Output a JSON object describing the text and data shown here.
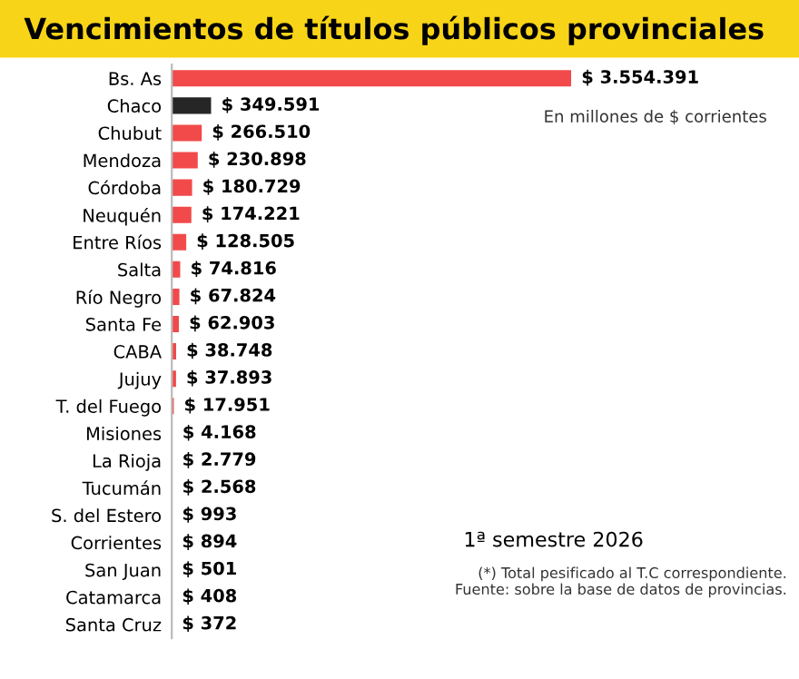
{
  "chart_data": {
    "type": "bar",
    "orientation": "horizontal",
    "title": "Vencimientos de títulos públicos provinciales",
    "subtitle": "En millones de $ corrientes",
    "categories": [
      "Bs. As",
      "Chaco",
      "Chubut",
      "Mendoza",
      "Córdoba",
      "Neuquén",
      "Entre Ríos",
      "Salta",
      "Río Negro",
      "Santa Fe",
      "CABA",
      "Jujuy",
      "T. del Fuego",
      "Misiones",
      "La Rioja",
      "Tucumán",
      "S. del Estero",
      "Corrientes",
      "San Juan",
      "Catamarca",
      "Santa Cruz"
    ],
    "values": [
      3554391,
      349591,
      266510,
      230898,
      180729,
      174221,
      128505,
      74816,
      67824,
      62903,
      38748,
      37893,
      17951,
      4168,
      2779,
      2568,
      993,
      894,
      501,
      408,
      372
    ],
    "value_labels": [
      "$ 3.554.391",
      "$ 349.591",
      "$ 266.510",
      "$ 230.898",
      "$ 180.729",
      "$ 174.221",
      "$ 128.505",
      "$ 74.816",
      "$ 67.824",
      "$ 62.903",
      "$ 38.748",
      "$ 37.893",
      "$ 17.951",
      "$ 4.168",
      "$ 2.779",
      "$ 2.568",
      "$ 993",
      "$ 894",
      "$ 501",
      "$ 408",
      "$ 372"
    ],
    "colors": [
      "#f24a4a",
      "#262626",
      "#f24a4a",
      "#f24a4a",
      "#f24a4a",
      "#f24a4a",
      "#f24a4a",
      "#f24a4a",
      "#f24a4a",
      "#f24a4a",
      "#f24a4a",
      "#f24a4a",
      "#f24a4a",
      "#f24a4a",
      "#f24a4a",
      "#f24a4a",
      "#f24a4a",
      "#f24a4a",
      "#f24a4a",
      "#f24a4a",
      "#f24a4a"
    ],
    "annotations": [
      "1ª semestre 2026",
      "(*) Total pesificado al T.C correspondiente.",
      "Fuente: sobre la base de datos de provincias."
    ],
    "grid": false,
    "legend": false
  }
}
